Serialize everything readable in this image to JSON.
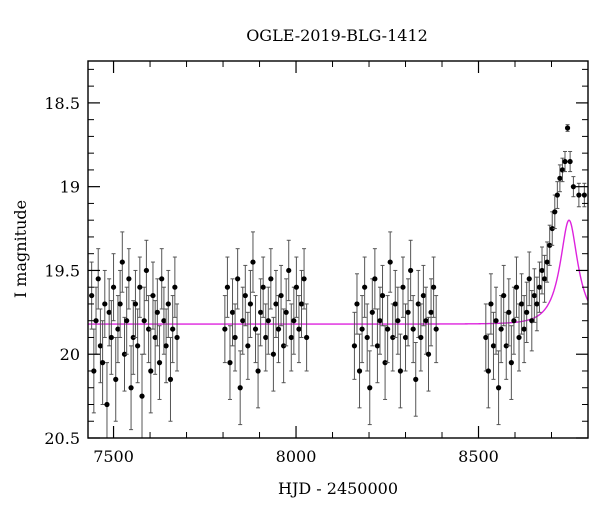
{
  "chart_data": {
    "type": "scatter",
    "title": "OGLE-2019-BLG-1412",
    "xlabel": "HJD - 2450000",
    "ylabel": "I magnitude",
    "xlim": [
      7430,
      8800
    ],
    "ylim": [
      20.5,
      18.25
    ],
    "y_inverted": true,
    "x_ticks": [
      7500,
      8000,
      8500
    ],
    "y_ticks": [
      18.5,
      19,
      19.5,
      20,
      20.5
    ],
    "y_tick_labels": [
      "18.5",
      "19",
      "19.5",
      "20",
      "20.5"
    ],
    "grid": false,
    "legend": "none",
    "colors": {
      "points": "#000000",
      "errorbars": "#555555",
      "model": "#dd22dd"
    },
    "model": {
      "baseline": 19.82,
      "t0": 8748,
      "peak": 19.2,
      "tE": 55,
      "u0": 0.45
    },
    "series": [
      {
        "kind": "points-with-errorbars",
        "x": [
          7440,
          7446,
          7452,
          7458,
          7464,
          7470,
          7476,
          7482,
          7488,
          7494,
          7500,
          7506,
          7512,
          7518,
          7524,
          7530,
          7536,
          7542,
          7548,
          7554,
          7560,
          7566,
          7572,
          7578,
          7584,
          7590,
          7596,
          7602,
          7608,
          7614,
          7620,
          7626,
          7632,
          7638,
          7644,
          7650,
          7656,
          7662,
          7668,
          7674,
          7805,
          7812,
          7819,
          7826,
          7833,
          7840,
          7847,
          7854,
          7861,
          7868,
          7875,
          7882,
          7889,
          7896,
          7903,
          7910,
          7917,
          7924,
          7931,
          7938,
          7945,
          7952,
          7959,
          7966,
          7973,
          7980,
          7987,
          7994,
          8001,
          8008,
          8015,
          8022,
          8029,
          8160,
          8167,
          8174,
          8181,
          8188,
          8195,
          8202,
          8209,
          8216,
          8223,
          8230,
          8237,
          8244,
          8251,
          8258,
          8265,
          8272,
          8279,
          8286,
          8293,
          8300,
          8307,
          8314,
          8321,
          8328,
          8335,
          8342,
          8349,
          8356,
          8363,
          8370,
          8377,
          8384,
          8520,
          8527,
          8534,
          8541,
          8548,
          8555,
          8562,
          8569,
          8576,
          8583,
          8590,
          8597,
          8604,
          8611,
          8618,
          8625,
          8632,
          8639,
          8646,
          8653,
          8660,
          8667,
          8674,
          8681,
          8688,
          8695,
          8702,
          8709,
          8716,
          8723,
          8730,
          8737,
          8744,
          8751,
          8760,
          8775,
          8790
        ],
        "y": [
          19.65,
          20.1,
          19.8,
          19.55,
          19.95,
          20.05,
          19.7,
          20.3,
          19.75,
          19.9,
          19.6,
          20.15,
          19.85,
          19.7,
          19.45,
          20.0,
          19.8,
          19.55,
          20.2,
          19.9,
          19.7,
          19.95,
          19.6,
          20.25,
          19.8,
          19.5,
          19.85,
          20.1,
          19.65,
          19.9,
          19.75,
          20.05,
          19.55,
          19.8,
          19.95,
          19.7,
          20.15,
          19.85,
          19.6,
          19.9,
          19.85,
          19.6,
          20.05,
          19.75,
          19.9,
          19.55,
          20.2,
          19.8,
          19.65,
          19.95,
          19.7,
          19.45,
          19.85,
          20.1,
          19.75,
          19.6,
          19.9,
          19.8,
          19.55,
          20.0,
          19.7,
          19.85,
          19.65,
          19.95,
          19.75,
          19.5,
          19.9,
          19.8,
          19.6,
          19.85,
          19.7,
          19.55,
          19.9,
          19.95,
          19.7,
          20.1,
          19.85,
          19.6,
          19.9,
          20.2,
          19.75,
          19.55,
          19.95,
          19.8,
          19.65,
          20.05,
          19.85,
          19.45,
          19.9,
          19.7,
          19.8,
          20.1,
          19.6,
          19.9,
          19.75,
          19.5,
          19.85,
          20.15,
          19.7,
          19.9,
          19.65,
          19.8,
          20.0,
          19.75,
          19.6,
          19.85,
          19.9,
          20.1,
          19.7,
          19.95,
          19.8,
          20.2,
          19.85,
          19.65,
          19.95,
          19.75,
          20.05,
          19.8,
          19.6,
          19.9,
          19.7,
          19.85,
          19.75,
          19.55,
          19.8,
          19.65,
          19.7,
          19.6,
          19.5,
          19.55,
          19.45,
          19.35,
          19.25,
          19.15,
          19.05,
          18.95,
          18.9,
          18.85,
          18.65,
          18.85,
          19.0,
          19.05,
          19.05
        ],
        "err": [
          0.2,
          0.25,
          0.2,
          0.18,
          0.22,
          0.25,
          0.2,
          0.25,
          0.2,
          0.22,
          0.2,
          0.25,
          0.2,
          0.2,
          0.18,
          0.22,
          0.2,
          0.18,
          0.25,
          0.22,
          0.2,
          0.22,
          0.18,
          0.25,
          0.2,
          0.18,
          0.2,
          0.25,
          0.2,
          0.22,
          0.2,
          0.22,
          0.18,
          0.2,
          0.22,
          0.2,
          0.25,
          0.2,
          0.18,
          0.2,
          0.2,
          0.18,
          0.22,
          0.2,
          0.2,
          0.18,
          0.22,
          0.2,
          0.18,
          0.2,
          0.2,
          0.18,
          0.2,
          0.22,
          0.2,
          0.18,
          0.2,
          0.2,
          0.18,
          0.22,
          0.2,
          0.2,
          0.18,
          0.22,
          0.2,
          0.18,
          0.2,
          0.2,
          0.18,
          0.2,
          0.2,
          0.18,
          0.2,
          0.2,
          0.18,
          0.22,
          0.2,
          0.18,
          0.2,
          0.22,
          0.2,
          0.18,
          0.22,
          0.2,
          0.18,
          0.22,
          0.2,
          0.18,
          0.2,
          0.2,
          0.2,
          0.22,
          0.18,
          0.2,
          0.2,
          0.18,
          0.2,
          0.22,
          0.2,
          0.2,
          0.18,
          0.2,
          0.22,
          0.2,
          0.18,
          0.2,
          0.2,
          0.22,
          0.18,
          0.2,
          0.2,
          0.22,
          0.2,
          0.18,
          0.2,
          0.2,
          0.22,
          0.2,
          0.18,
          0.2,
          0.18,
          0.2,
          0.18,
          0.16,
          0.18,
          0.16,
          0.16,
          0.15,
          0.14,
          0.14,
          0.12,
          0.12,
          0.1,
          0.1,
          0.08,
          0.08,
          0.07,
          0.06,
          0.02,
          0.06,
          0.06,
          0.07,
          0.07
        ]
      }
    ]
  }
}
